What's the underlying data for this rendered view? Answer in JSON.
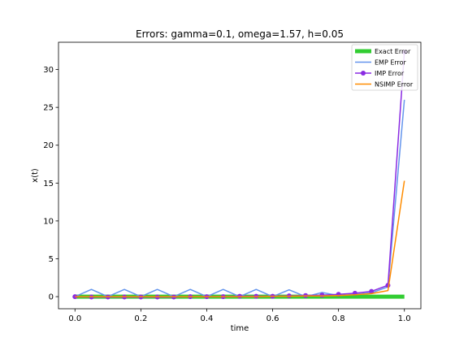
{
  "chart_data": {
    "type": "line",
    "title": "Errors: gamma=0.1, omega=1.57, h=0.05",
    "xlabel": "time",
    "ylabel": "x(t)",
    "xlim": [
      -0.05,
      1.05
    ],
    "ylim": [
      -1.6,
      33.6
    ],
    "xticks": [
      0.0,
      0.2,
      0.4,
      0.6,
      0.8,
      1.0
    ],
    "xtick_labels": [
      "0.0",
      "0.2",
      "0.4",
      "0.6",
      "0.8",
      "1.0"
    ],
    "yticks": [
      0,
      5,
      10,
      15,
      20,
      25,
      30
    ],
    "ytick_labels": [
      "0",
      "5",
      "10",
      "15",
      "20",
      "25",
      "30"
    ],
    "grid": false,
    "legend_position": "top-right",
    "x": [
      0.0,
      0.05,
      0.1,
      0.15,
      0.2,
      0.25,
      0.3,
      0.35,
      0.4,
      0.45,
      0.5,
      0.55,
      0.6,
      0.65,
      0.7,
      0.75,
      0.8,
      0.85,
      0.9,
      0.95,
      1.0
    ],
    "series": [
      {
        "name": "Exact Error",
        "color": "#32cd32",
        "style": "thick-line",
        "values": [
          0,
          0,
          0,
          0,
          0,
          0,
          0,
          0,
          0,
          0,
          0,
          0,
          0,
          0,
          0,
          0,
          0,
          0,
          0,
          0,
          0
        ]
      },
      {
        "name": "EMP Error",
        "color": "#6495ed",
        "style": "line",
        "values": [
          0,
          0.95,
          0,
          0.95,
          0,
          0.95,
          0,
          0.95,
          0,
          0.95,
          0,
          0.95,
          0,
          0.9,
          0,
          0.55,
          0.15,
          0.3,
          0.5,
          1.3,
          26.0
        ]
      },
      {
        "name": "IMP Error",
        "color": "#8a2be2",
        "style": "line-marker",
        "values": [
          0,
          -0.05,
          -0.05,
          -0.05,
          -0.05,
          -0.05,
          -0.05,
          0.0,
          0.0,
          0.0,
          0.05,
          0.05,
          0.05,
          0.1,
          0.15,
          0.2,
          0.3,
          0.45,
          0.7,
          1.5,
          32.3
        ]
      },
      {
        "name": "NSIMP Error",
        "color": "#ff8c00",
        "style": "line",
        "values": [
          0,
          0,
          0,
          0,
          0,
          0,
          0,
          0,
          0,
          0,
          0,
          0,
          0.05,
          0.05,
          0.1,
          0.1,
          0.15,
          0.25,
          0.4,
          0.8,
          15.3
        ]
      }
    ]
  }
}
